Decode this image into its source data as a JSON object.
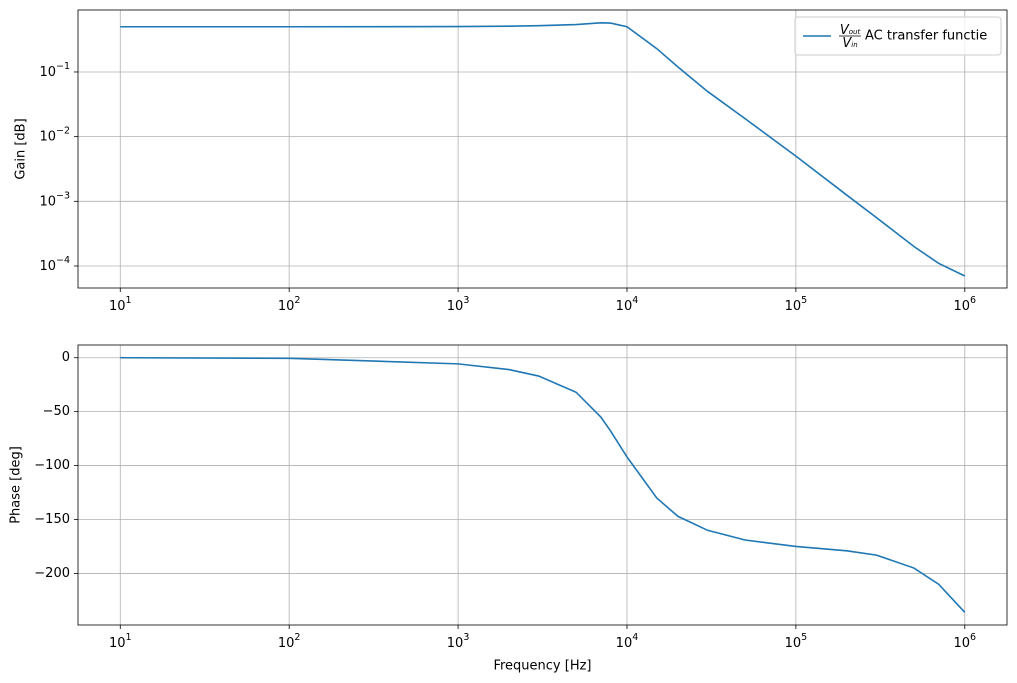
{
  "chart_data": [
    {
      "type": "line",
      "xscale": "log",
      "yscale": "log",
      "grid": true,
      "legend": "upper right",
      "ylabel": "Gain [dB]",
      "x": [
        10,
        100,
        1000,
        2000,
        3000,
        5000,
        7000,
        8000,
        10000,
        15000,
        20000,
        30000,
        50000,
        100000,
        200000,
        300000,
        500000,
        700000,
        1000000
      ],
      "series": [
        {
          "name": "AC transfer functie",
          "name_fraction": {
            "numerator": {
              "base": "V",
              "sub": "out"
            },
            "denominator": {
              "base": "V",
              "sub": "in"
            }
          },
          "color": "#1f77b4",
          "values": [
            0.5,
            0.5,
            0.503,
            0.51,
            0.52,
            0.54,
            0.575,
            0.57,
            0.5,
            0.23,
            0.12,
            0.05,
            0.019,
            0.005,
            0.00125,
            0.00056,
            0.0002,
            0.00011,
            7e-05
          ]
        }
      ],
      "xlim": [
        5.62,
        1778000
      ],
      "ylim": [
        4.57e-05,
        0.908
      ],
      "xticks": [
        {
          "value": 10,
          "base": "10",
          "exponent": "1"
        },
        {
          "value": 100,
          "base": "10",
          "exponent": "2"
        },
        {
          "value": 1000,
          "base": "10",
          "exponent": "3"
        },
        {
          "value": 10000,
          "base": "10",
          "exponent": "4"
        },
        {
          "value": 100000,
          "base": "10",
          "exponent": "5"
        },
        {
          "value": 1000000,
          "base": "10",
          "exponent": "6"
        }
      ],
      "yticks": [
        {
          "value": 0.1,
          "base": "10",
          "exponent": "−1"
        },
        {
          "value": 0.01,
          "base": "10",
          "exponent": "−2"
        },
        {
          "value": 0.001,
          "base": "10",
          "exponent": "−3"
        },
        {
          "value": 0.0001,
          "base": "10",
          "exponent": "−4"
        }
      ]
    },
    {
      "type": "line",
      "xscale": "log",
      "yscale": "linear",
      "grid": true,
      "ylabel": "Phase [deg]",
      "xlabel": "Frequency [Hz]",
      "x": [
        10,
        100,
        1000,
        2000,
        3000,
        5000,
        7000,
        8000,
        10000,
        15000,
        20000,
        30000,
        50000,
        100000,
        200000,
        300000,
        500000,
        700000,
        1000000
      ],
      "series": [
        {
          "color": "#1f77b4",
          "values": [
            0,
            -0.5,
            -5.7,
            -11,
            -17,
            -32,
            -55,
            -68,
            -92,
            -130,
            -147,
            -160,
            -169,
            -175,
            -179,
            -183,
            -195,
            -210,
            -236
          ]
        }
      ],
      "xlim": [
        5.62,
        1778000
      ],
      "ylim": [
        -247.8,
        11.8
      ],
      "xticks": [
        {
          "value": 10,
          "base": "10",
          "exponent": "1"
        },
        {
          "value": 100,
          "base": "10",
          "exponent": "2"
        },
        {
          "value": 1000,
          "base": "10",
          "exponent": "3"
        },
        {
          "value": 10000,
          "base": "10",
          "exponent": "4"
        },
        {
          "value": 100000,
          "base": "10",
          "exponent": "5"
        },
        {
          "value": 1000000,
          "base": "10",
          "exponent": "6"
        }
      ],
      "yticks": [
        0,
        {
          "value": -50,
          "label": "−50"
        },
        {
          "value": -100,
          "label": "−100"
        },
        {
          "value": -150,
          "label": "−150"
        },
        {
          "value": -200,
          "label": "−200"
        }
      ]
    }
  ]
}
